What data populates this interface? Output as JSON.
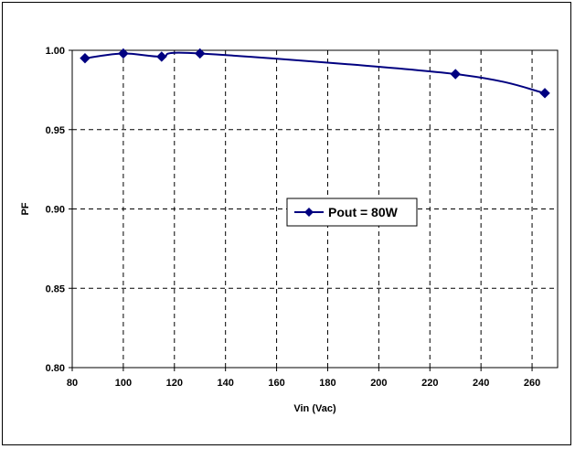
{
  "chart_data": {
    "type": "line",
    "title": "",
    "xlabel": "Vin (Vac)",
    "ylabel": "PF",
    "xlim": [
      80,
      270
    ],
    "ylim": [
      0.8,
      1.0
    ],
    "x_ticks": [
      80,
      100,
      120,
      140,
      160,
      180,
      200,
      220,
      240,
      260
    ],
    "x_tick_labels": [
      "80",
      "100",
      "120",
      "140",
      "160",
      "180",
      "200",
      "220",
      "240",
      "260"
    ],
    "y_ticks": [
      0.8,
      0.85,
      0.9,
      0.95,
      1.0
    ],
    "y_tick_labels": [
      "0.80",
      "0.85",
      "0.90",
      "0.95",
      "1.00"
    ],
    "grid": true,
    "legend_position": "center",
    "series": [
      {
        "name": "Pout = 80W",
        "color": "#000080",
        "marker": "diamond",
        "x": [
          85,
          100,
          115,
          130,
          230,
          265
        ],
        "y": [
          0.995,
          0.998,
          0.996,
          0.998,
          0.985,
          0.973
        ]
      }
    ]
  }
}
